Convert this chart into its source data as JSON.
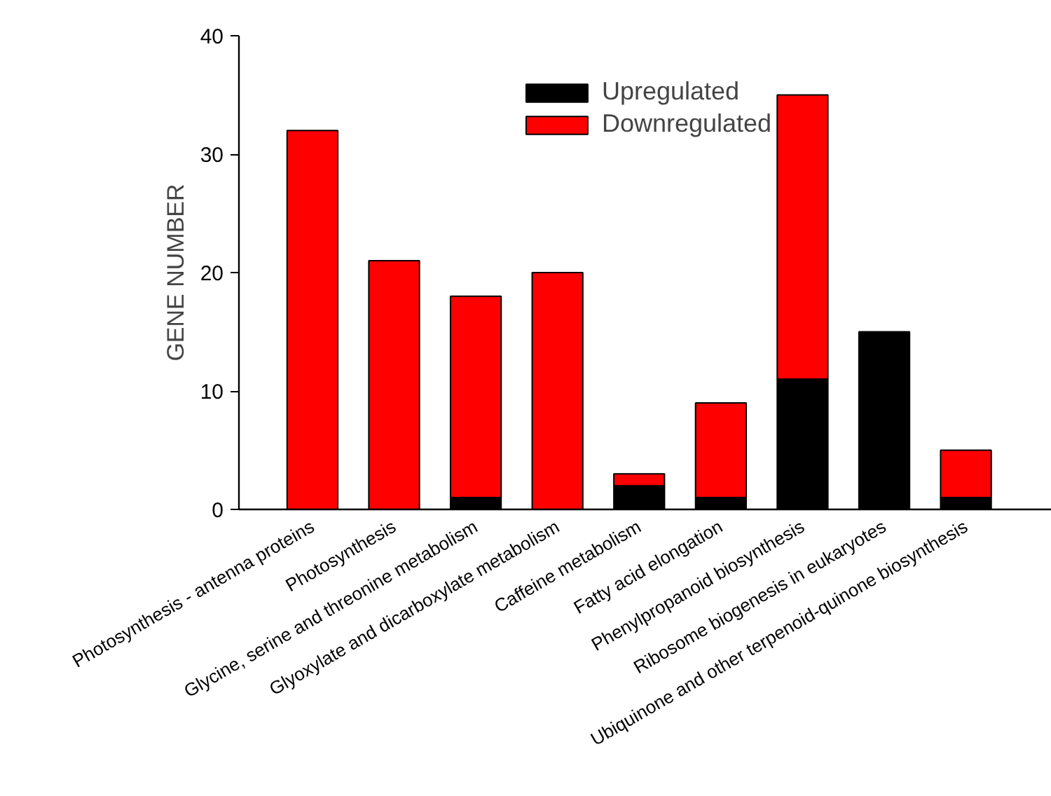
{
  "chart_data": {
    "type": "bar",
    "stacked": true,
    "ylabel": "GENE NUMBER",
    "categories": [
      "Photosynthesis - antenna proteins",
      "Photosynthesis",
      "Glycine, serine and threonine metabolism",
      "Glyoxylate and dicarboxylate metabolism",
      "Caffeine metabolism",
      "Fatty acid elongation",
      "Phenylpropanoid biosynthesis",
      "Ribosome biogenesis in eukaryotes",
      "Ubiquinone and other terpenoid-quinone biosynthesis"
    ],
    "series": [
      {
        "name": "Upregulated",
        "color": "#000000",
        "values": [
          0,
          0,
          1,
          0,
          2,
          1,
          11,
          15,
          1
        ]
      },
      {
        "name": "Downregulated",
        "color": "#ff0000",
        "values": [
          32,
          21,
          17,
          20,
          1,
          8,
          24,
          0,
          4
        ]
      }
    ],
    "ylim": [
      0,
      40
    ],
    "yticks": [
      0,
      10,
      20,
      30,
      40
    ],
    "grid": false,
    "legend": "top"
  }
}
